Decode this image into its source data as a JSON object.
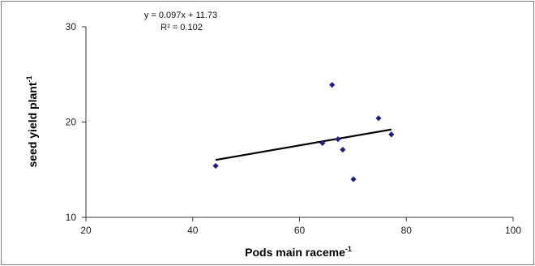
{
  "chart_data": {
    "type": "scatter",
    "xlabel": "Pods main raceme",
    "xlabel_sup": "-1",
    "ylabel": "seed yield plant",
    "ylabel_sup": "-1",
    "xlim": [
      20,
      100
    ],
    "ylim": [
      10,
      30
    ],
    "xticks": [
      20,
      40,
      60,
      80,
      100
    ],
    "yticks": [
      10,
      20,
      30
    ],
    "grid": false,
    "marker_color": "#1f1f7a",
    "trendline_color": "#000000",
    "annotations": [
      "y = 0.097x + 11.73",
      "R² = 0.102"
    ],
    "trendline": {
      "slope": 0.097,
      "intercept": 11.73,
      "x_from": 44.3,
      "x_to": 77.2
    },
    "series": [
      {
        "x": [
          44.3,
          64.3,
          66.1,
          67.2,
          68.1,
          70.1,
          74.8,
          77.2
        ],
        "y": [
          15.4,
          17.8,
          23.9,
          18.2,
          17.1,
          14.0,
          20.4,
          18.7
        ]
      }
    ]
  }
}
